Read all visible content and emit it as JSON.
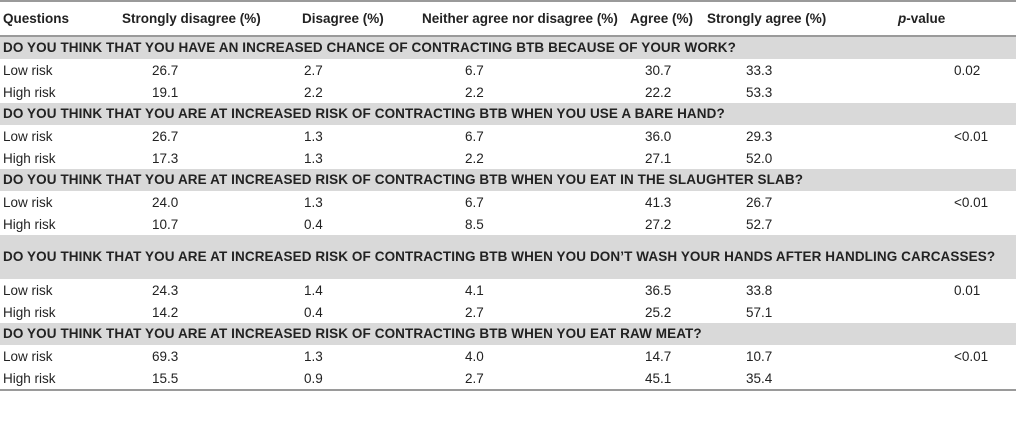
{
  "headers": {
    "questions": "Questions",
    "strongly_disagree": "Strongly disagree (%)",
    "disagree": "Disagree (%)",
    "neither": "Neither agree nor disagree (%)",
    "agree": "Agree (%)",
    "strongly_agree": "Strongly agree (%)",
    "p_prefix": "p",
    "p_suffix": "-value"
  },
  "sections": [
    {
      "question": "DO YOU THINK THAT YOU HAVE AN INCREASED CHANCE OF CONTRACTING BTB BECAUSE OF YOUR WORK?",
      "rows": [
        {
          "group": "Low risk",
          "sd": "26.7",
          "d": "2.7",
          "n": "6.7",
          "a": "30.7",
          "sa": "33.3",
          "p": "0.02"
        },
        {
          "group": "High risk",
          "sd": "19.1",
          "d": "2.2",
          "n": "2.2",
          "a": "22.2",
          "sa": "53.3",
          "p": ""
        }
      ]
    },
    {
      "question": "DO YOU THINK THAT YOU ARE AT INCREASED RISK OF CONTRACTING BTB WHEN YOU USE A BARE HAND?",
      "rows": [
        {
          "group": "Low risk",
          "sd": "26.7",
          "d": "1.3",
          "n": "6.7",
          "a": "36.0",
          "sa": "29.3",
          "p": "<0.01"
        },
        {
          "group": "High risk",
          "sd": "17.3",
          "d": "1.3",
          "n": "2.2",
          "a": "27.1",
          "sa": "52.0",
          "p": ""
        }
      ]
    },
    {
      "question": "DO YOU THINK THAT YOU ARE AT INCREASED RISK OF CONTRACTING BTB WHEN YOU EAT IN THE SLAUGHTER SLAB?",
      "rows": [
        {
          "group": "Low risk",
          "sd": "24.0",
          "d": "1.3",
          "n": "6.7",
          "a": "41.3",
          "sa": "26.7",
          "p": "<0.01"
        },
        {
          "group": "High risk",
          "sd": "10.7",
          "d": "0.4",
          "n": "8.5",
          "a": "27.2",
          "sa": "52.7",
          "p": ""
        }
      ]
    },
    {
      "question": "DO YOU THINK THAT YOU ARE AT INCREASED RISK OF CONTRACTING BTB WHEN YOU DON’T WASH YOUR HANDS AFTER HANDLING CARCASSES?",
      "rows": [
        {
          "group": "Low risk",
          "sd": "24.3",
          "d": "1.4",
          "n": "4.1",
          "a": "36.5",
          "sa": "33.8",
          "p": "0.01"
        },
        {
          "group": "High risk",
          "sd": "14.2",
          "d": "0.4",
          "n": "2.7",
          "a": "25.2",
          "sa": "57.1",
          "p": ""
        }
      ]
    },
    {
      "question": "DO YOU THINK THAT YOU ARE AT INCREASED RISK OF CONTRACTING BTB WHEN YOU EAT RAW MEAT?",
      "rows": [
        {
          "group": "Low risk",
          "sd": "69.3",
          "d": "1.3",
          "n": "4.0",
          "a": "14.7",
          "sa": "10.7",
          "p": "<0.01"
        },
        {
          "group": "High risk",
          "sd": "15.5",
          "d": "0.9",
          "n": "2.7",
          "a": "45.1",
          "sa": "35.4",
          "p": ""
        }
      ]
    }
  ]
}
